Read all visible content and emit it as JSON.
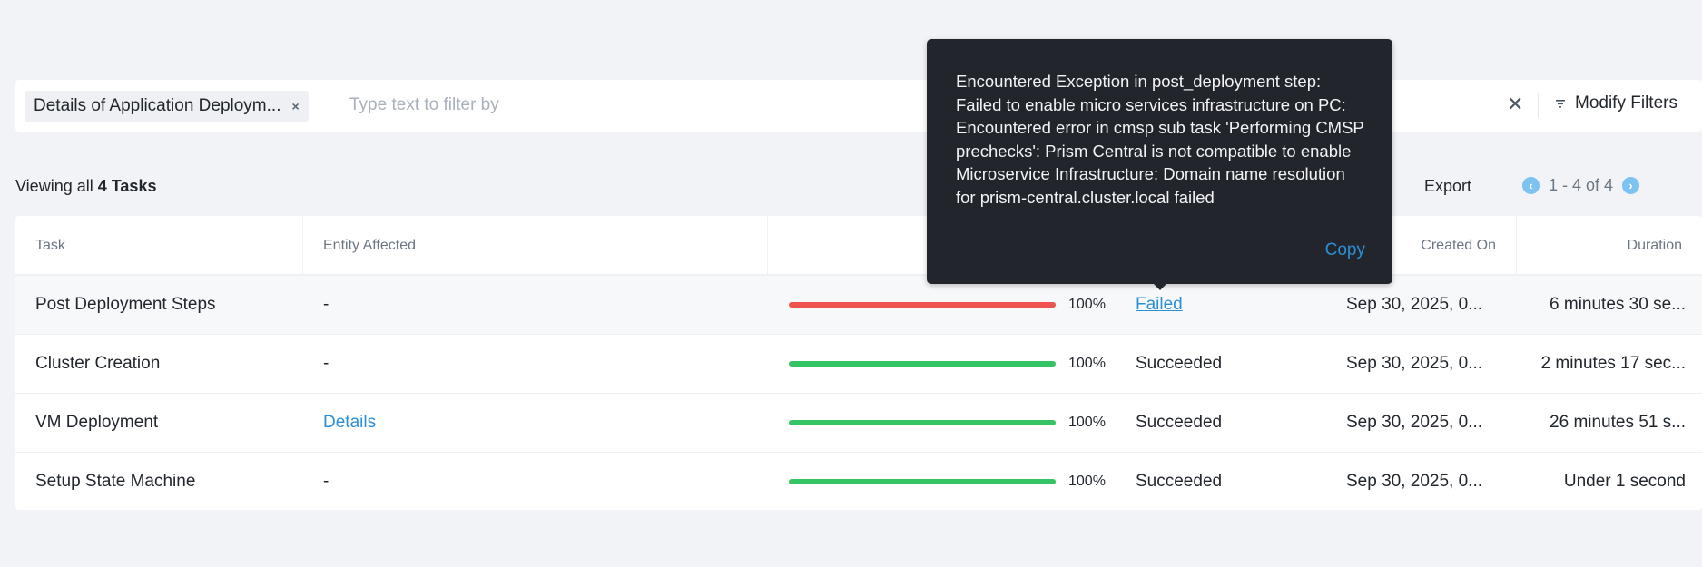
{
  "filter": {
    "chip_label": "Details of Application Deploym...",
    "chip_remove_icon": "×",
    "placeholder": "Type text to filter by",
    "clear_icon": "✕",
    "modify_label": "Modify Filters"
  },
  "summary": {
    "prefix": "Viewing all",
    "count": "4 Tasks"
  },
  "toolbar": {
    "export_label": "Export",
    "pagination": "1 - 4 of 4",
    "prev": "‹",
    "next": "›"
  },
  "table": {
    "columns": [
      "Task",
      "Entity Affected",
      "",
      "Created On",
      "Duration"
    ],
    "rows": [
      {
        "task": "Post Deployment Steps",
        "entity": "-",
        "progress": 100,
        "progress_label": "100%",
        "status": "Failed",
        "created": "Sep 30, 2025, 0...",
        "duration": "6 minutes 30 se..."
      },
      {
        "task": "Cluster Creation",
        "entity": "-",
        "progress": 100,
        "progress_label": "100%",
        "status": "Succeeded",
        "created": "Sep 30, 2025, 0...",
        "duration": "2 minutes 17 sec..."
      },
      {
        "task": "VM Deployment",
        "entity": "Details",
        "progress": 100,
        "progress_label": "100%",
        "status": "Succeeded",
        "created": "Sep 30, 2025, 0...",
        "duration": "26 minutes 51 s..."
      },
      {
        "task": "Setup State Machine",
        "entity": "-",
        "progress": 100,
        "progress_label": "100%",
        "status": "Succeeded",
        "created": "Sep 30, 2025, 0...",
        "duration": "Under 1 second"
      }
    ]
  },
  "tooltip": {
    "message": "Encountered Exception in post_deployment step: Failed to enable micro services infrastructure on PC: Encountered error in cmsp sub task 'Performing CMSP prechecks': Prism Central is not compatible to enable Microservice Infrastructure: Domain name resolution for prism-central.cluster.local failed",
    "copy_label": "Copy"
  },
  "colors": {
    "failed": "#ef5350",
    "succeeded": "#35c463",
    "link": "#2a8fd8",
    "tooltip_bg": "#22262c"
  }
}
